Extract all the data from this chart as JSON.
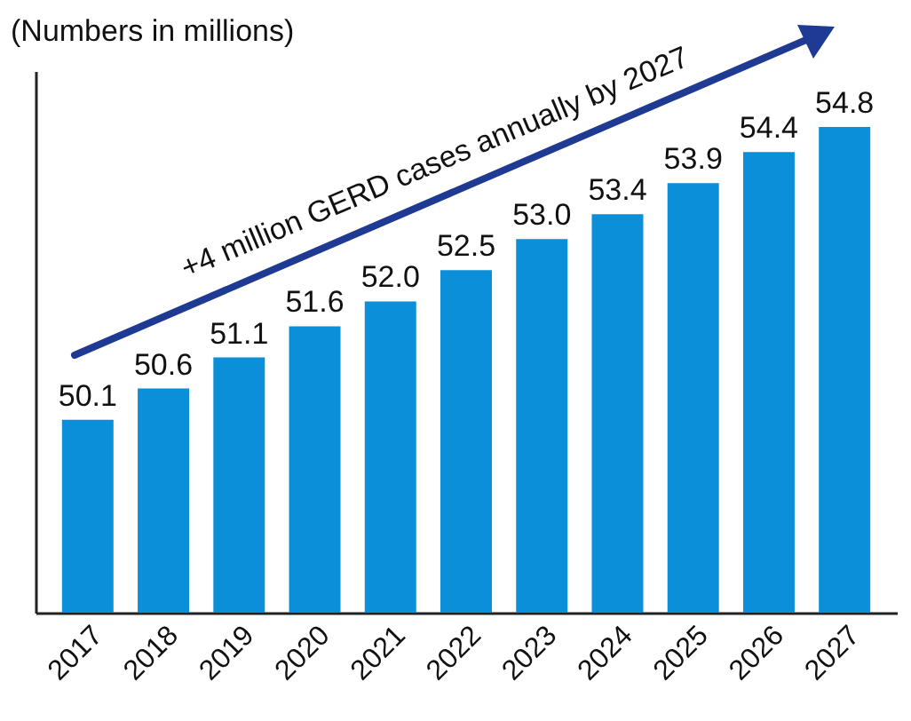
{
  "chart_data": {
    "type": "bar",
    "title": "(Numbers in millions)",
    "categories": [
      "2017",
      "2018",
      "2019",
      "2020",
      "2021",
      "2022",
      "2023",
      "2024",
      "2025",
      "2026",
      "2027"
    ],
    "values": [
      50.1,
      50.6,
      51.1,
      51.6,
      52.0,
      52.5,
      53.0,
      53.4,
      53.9,
      54.4,
      54.8
    ],
    "value_labels": [
      "50.1",
      "50.6",
      "51.1",
      "51.6",
      "52.0",
      "52.5",
      "53.0",
      "53.4",
      "53.9",
      "54.4",
      "54.8"
    ],
    "color": "#0a8fd8",
    "ylim": [
      47,
      55.7
    ],
    "tick_labels": "x",
    "annotations": [
      "+4 million GERD cases annually by 2027"
    ]
  }
}
